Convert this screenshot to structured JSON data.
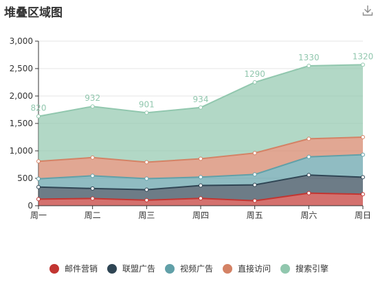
{
  "title": "堆叠区域图",
  "toolbar": {
    "download_icon": "download-icon"
  },
  "chart_data": {
    "type": "area",
    "stacked": true,
    "title": "堆叠区域图",
    "categories": [
      "周一",
      "周二",
      "周三",
      "周四",
      "周五",
      "周六",
      "周日"
    ],
    "ylim": [
      0,
      3000
    ],
    "yticks": [
      0,
      500,
      1000,
      1500,
      2000,
      2500,
      3000
    ],
    "ytick_labels": [
      "0",
      "500",
      "1,000",
      "1,500",
      "2,000",
      "2,500",
      "3,000"
    ],
    "grid": true,
    "legend_position": "bottom",
    "series": [
      {
        "name": "邮件营销",
        "color": "#c23531",
        "values": [
          120,
          132,
          101,
          134,
          90,
          230,
          210
        ]
      },
      {
        "name": "联盟广告",
        "color": "#2f4554",
        "values": [
          220,
          182,
          191,
          234,
          290,
          330,
          310
        ]
      },
      {
        "name": "视频广告",
        "color": "#61a0a8",
        "values": [
          150,
          232,
          201,
          154,
          190,
          330,
          410
        ]
      },
      {
        "name": "直接访问",
        "color": "#d48265",
        "values": [
          320,
          332,
          301,
          334,
          390,
          330,
          320
        ]
      },
      {
        "name": "搜索引擎",
        "color": "#91c7ae",
        "values": [
          820,
          932,
          901,
          934,
          1290,
          1330,
          1320
        ]
      }
    ],
    "top_labels": [
      "820",
      "932",
      "901",
      "934",
      "1290",
      "1330",
      "1320"
    ]
  }
}
